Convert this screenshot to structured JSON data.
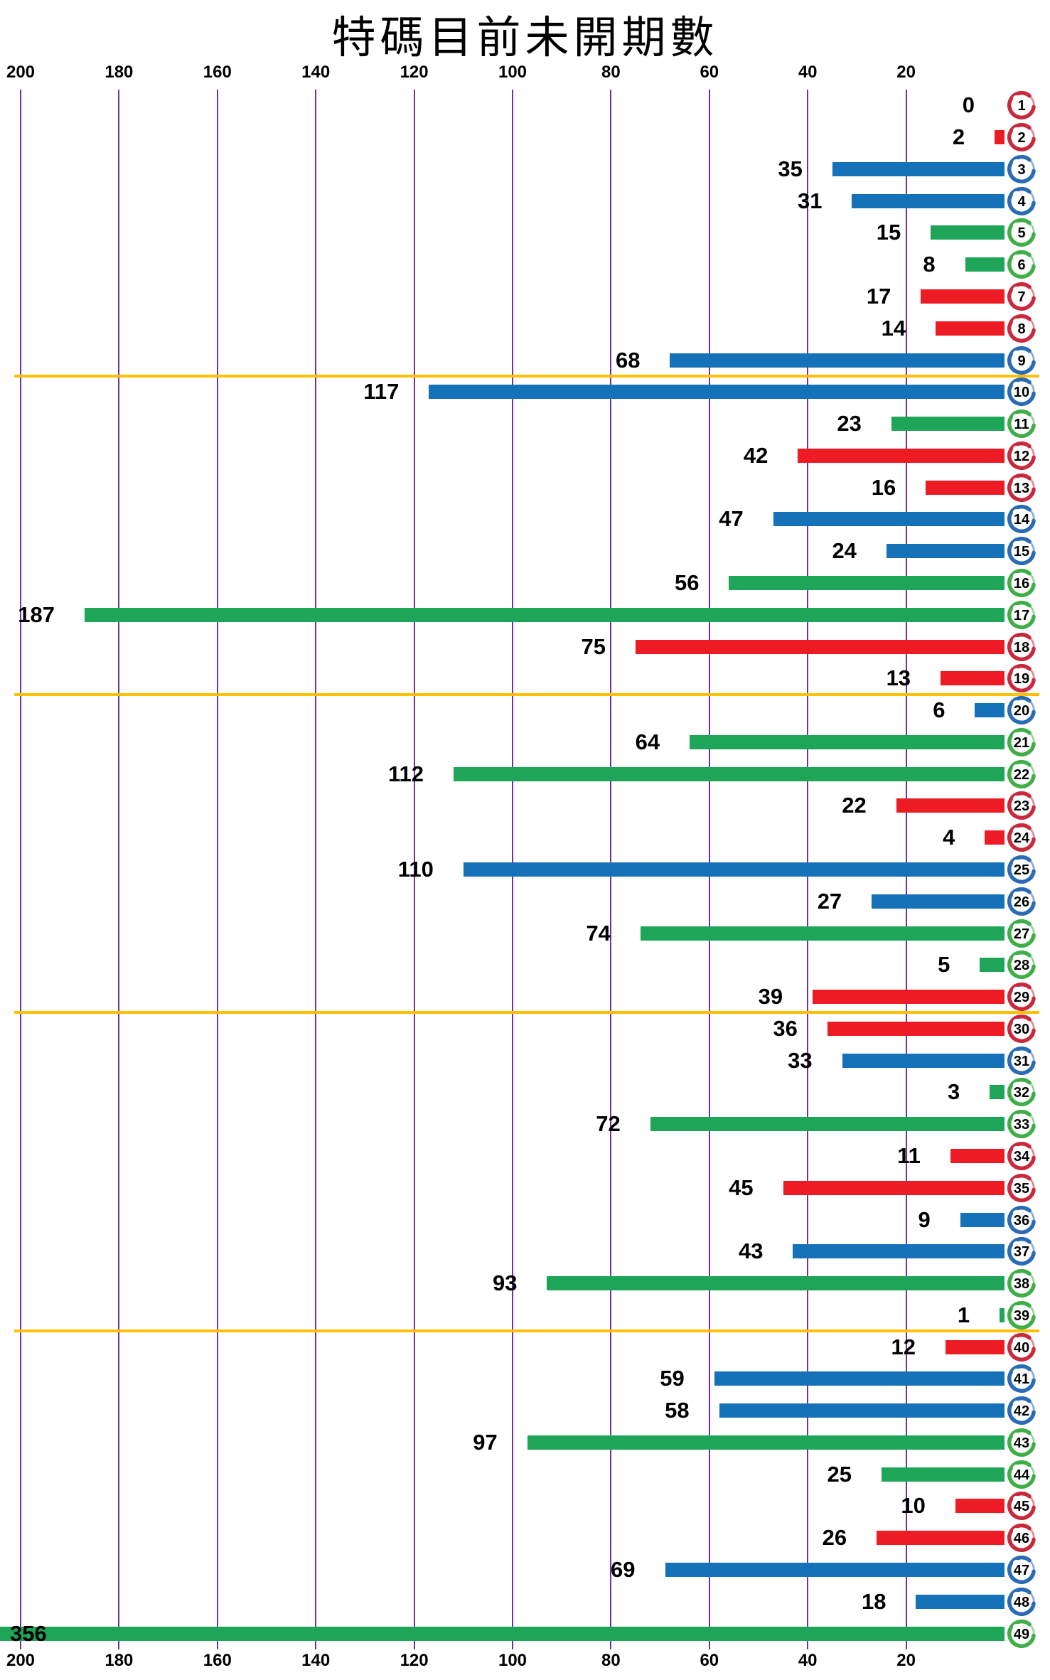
{
  "title": "特碼目前未開期數",
  "colors": {
    "red": "#ED1C24",
    "blue": "#1572B8",
    "green": "#1FA557",
    "ball_red": "#C9293C",
    "ball_blue": "#2A6BB5",
    "ball_green": "#3FAE49",
    "grid": "#7030A0",
    "separator": "#FFC000",
    "label": "#000000"
  },
  "chart_data": {
    "type": "bar",
    "orientation": "horizontal-right-anchored",
    "title": "特碼目前未開期數",
    "xlabel": "",
    "ylabel": "",
    "x_ticks": [
      200,
      180,
      160,
      140,
      120,
      100,
      80,
      60,
      40,
      20
    ],
    "x_axis_max_displayed": 200,
    "grid": true,
    "separators_after_numbers": [
      9,
      19,
      29,
      39
    ],
    "items": [
      {
        "number": 1,
        "value": 0,
        "color": "red"
      },
      {
        "number": 2,
        "value": 2,
        "color": "red"
      },
      {
        "number": 3,
        "value": 35,
        "color": "blue"
      },
      {
        "number": 4,
        "value": 31,
        "color": "blue"
      },
      {
        "number": 5,
        "value": 15,
        "color": "green"
      },
      {
        "number": 6,
        "value": 8,
        "color": "green"
      },
      {
        "number": 7,
        "value": 17,
        "color": "red"
      },
      {
        "number": 8,
        "value": 14,
        "color": "red"
      },
      {
        "number": 9,
        "value": 68,
        "color": "blue"
      },
      {
        "number": 10,
        "value": 117,
        "color": "blue"
      },
      {
        "number": 11,
        "value": 23,
        "color": "green"
      },
      {
        "number": 12,
        "value": 42,
        "color": "red"
      },
      {
        "number": 13,
        "value": 16,
        "color": "red"
      },
      {
        "number": 14,
        "value": 47,
        "color": "blue"
      },
      {
        "number": 15,
        "value": 24,
        "color": "blue"
      },
      {
        "number": 16,
        "value": 56,
        "color": "green"
      },
      {
        "number": 17,
        "value": 187,
        "color": "green"
      },
      {
        "number": 18,
        "value": 75,
        "color": "red"
      },
      {
        "number": 19,
        "value": 13,
        "color": "red"
      },
      {
        "number": 20,
        "value": 6,
        "color": "blue"
      },
      {
        "number": 21,
        "value": 64,
        "color": "green"
      },
      {
        "number": 22,
        "value": 112,
        "color": "green"
      },
      {
        "number": 23,
        "value": 22,
        "color": "red"
      },
      {
        "number": 24,
        "value": 4,
        "color": "red"
      },
      {
        "number": 25,
        "value": 110,
        "color": "blue"
      },
      {
        "number": 26,
        "value": 27,
        "color": "blue"
      },
      {
        "number": 27,
        "value": 74,
        "color": "green"
      },
      {
        "number": 28,
        "value": 5,
        "color": "green"
      },
      {
        "number": 29,
        "value": 39,
        "color": "red"
      },
      {
        "number": 30,
        "value": 36,
        "color": "red"
      },
      {
        "number": 31,
        "value": 33,
        "color": "blue"
      },
      {
        "number": 32,
        "value": 3,
        "color": "green"
      },
      {
        "number": 33,
        "value": 72,
        "color": "green"
      },
      {
        "number": 34,
        "value": 11,
        "color": "red"
      },
      {
        "number": 35,
        "value": 45,
        "color": "red"
      },
      {
        "number": 36,
        "value": 9,
        "color": "blue"
      },
      {
        "number": 37,
        "value": 43,
        "color": "blue"
      },
      {
        "number": 38,
        "value": 93,
        "color": "green"
      },
      {
        "number": 39,
        "value": 1,
        "color": "green"
      },
      {
        "number": 40,
        "value": 12,
        "color": "red"
      },
      {
        "number": 41,
        "value": 59,
        "color": "blue"
      },
      {
        "number": 42,
        "value": 58,
        "color": "blue"
      },
      {
        "number": 43,
        "value": 97,
        "color": "green"
      },
      {
        "number": 44,
        "value": 25,
        "color": "green"
      },
      {
        "number": 45,
        "value": 10,
        "color": "red"
      },
      {
        "number": 46,
        "value": 26,
        "color": "red"
      },
      {
        "number": 47,
        "value": 69,
        "color": "blue"
      },
      {
        "number": 48,
        "value": 18,
        "color": "blue"
      },
      {
        "number": 49,
        "value": 356,
        "color": "green"
      }
    ]
  }
}
